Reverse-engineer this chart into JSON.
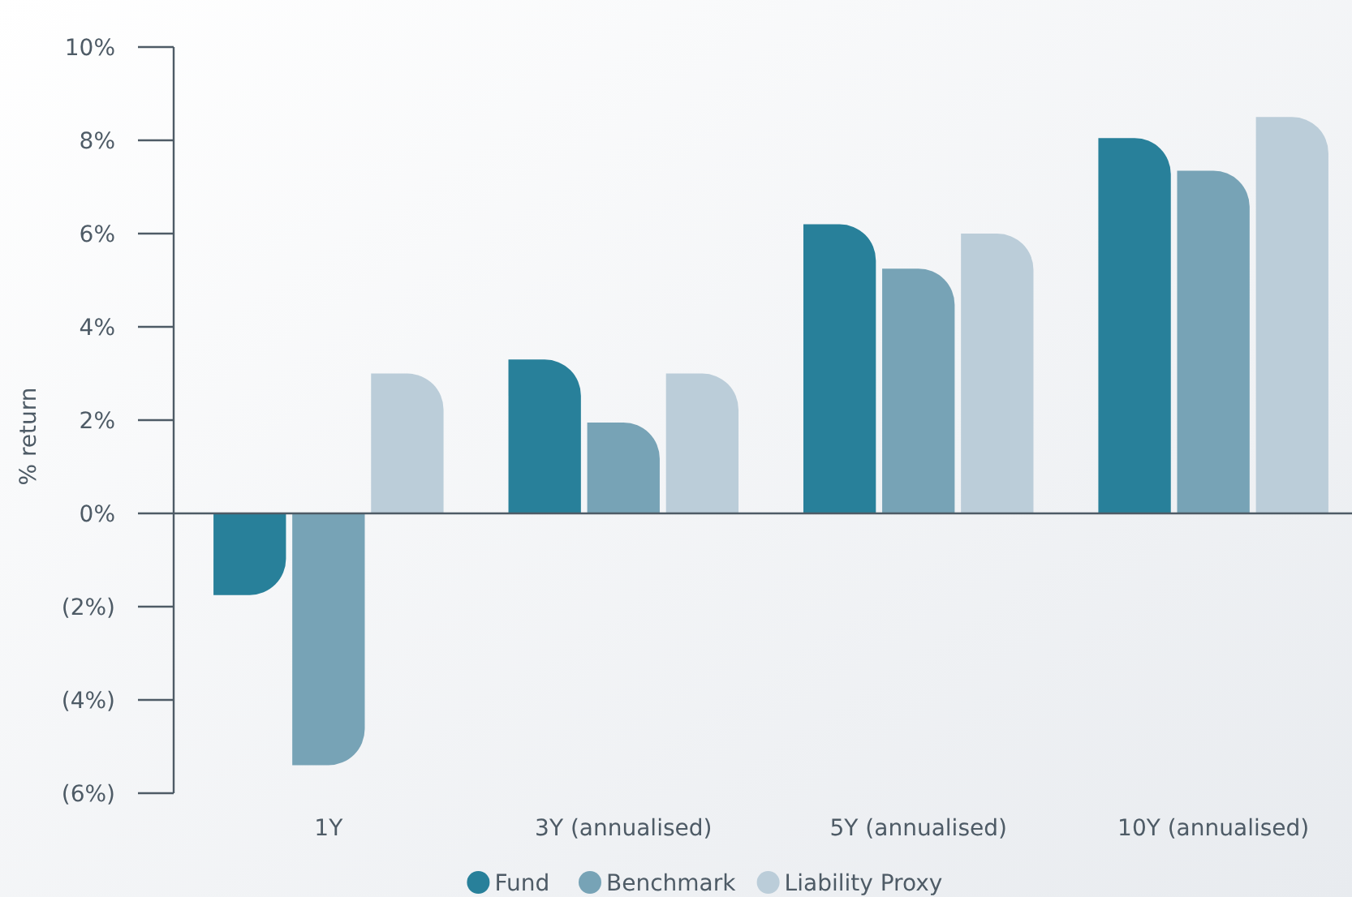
{
  "chart_data": {
    "type": "bar",
    "ylabel": "% return",
    "categories": [
      "1Y",
      "3Y (annualised)",
      "5Y (annualised)",
      "10Y (annualised)"
    ],
    "series": [
      {
        "name": "Fund",
        "color": "#28809a",
        "values": [
          -1.75,
          3.3,
          6.2,
          8.05
        ]
      },
      {
        "name": "Benchmark",
        "color": "#77a3b6",
        "values": [
          -5.4,
          1.95,
          5.25,
          7.35
        ]
      },
      {
        "name": "Liability Proxy",
        "color": "#bbcdd9",
        "values": [
          3.0,
          3.0,
          6.0,
          8.5
        ]
      }
    ],
    "ylim": [
      -6,
      10
    ],
    "yticks": [
      {
        "value": -6,
        "label": "(6%)"
      },
      {
        "value": -4,
        "label": "(4%)"
      },
      {
        "value": -2,
        "label": "(2%)"
      },
      {
        "value": 0,
        "label": "0%"
      },
      {
        "value": 2,
        "label": "2%"
      },
      {
        "value": 4,
        "label": "4%"
      },
      {
        "value": 6,
        "label": "6%"
      },
      {
        "value": 8,
        "label": "8%"
      },
      {
        "value": 10,
        "label": "10%"
      }
    ],
    "ref_lines": [
      {
        "axis": "y",
        "value": 0,
        "color": "#4e5b66"
      }
    ],
    "legend": "bottom"
  }
}
